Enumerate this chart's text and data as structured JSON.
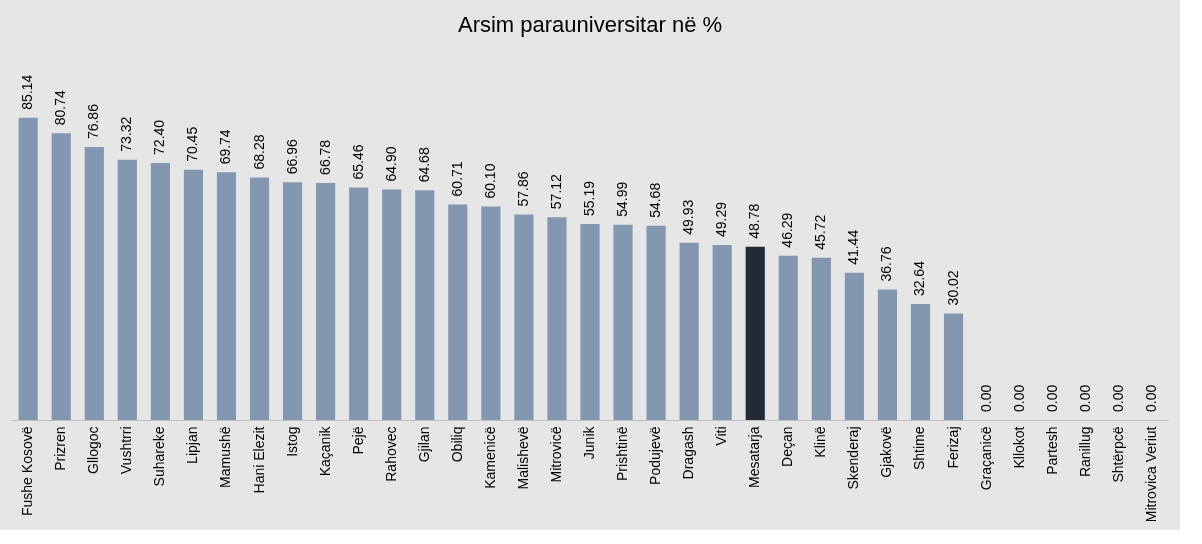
{
  "chart_data": {
    "type": "bar",
    "title": "Arsim parauniversitar në %",
    "categories": [
      "Fushe Kosovë",
      "Prizren",
      "Gllogoc",
      "Vushtrri",
      "Suhareke",
      "Lipjan",
      "Mamushë",
      "Hani Elezit",
      "Istog",
      "Kaçanik",
      "Pejë",
      "Rahovec",
      "Gjilan",
      "Obiliq",
      "Kamenicë",
      "Malishevë",
      "Mitrovicë",
      "Junik",
      "Prishtinë",
      "Podujevë",
      "Dragash",
      "Viti",
      "Mesatarja",
      "Deçan",
      "Klinë",
      "Skenderaj",
      "Gjakovë",
      "Shtime",
      "Ferizaj",
      "Graçanicë",
      "Kllokot",
      "Partesh",
      "Ranillug",
      "Shtërpcë",
      "Mitrovica Veriut"
    ],
    "values": [
      85.14,
      80.74,
      76.86,
      73.32,
      72.4,
      70.45,
      69.74,
      68.28,
      66.96,
      66.78,
      65.46,
      64.9,
      64.68,
      60.71,
      60.1,
      57.86,
      57.12,
      55.19,
      54.99,
      54.68,
      49.93,
      49.29,
      48.78,
      46.29,
      45.72,
      41.44,
      36.76,
      32.64,
      30.02,
      0.0,
      0.0,
      0.0,
      0.0,
      0.0,
      0.0
    ],
    "value_labels": [
      "85.14",
      "80.74",
      "76.86",
      "73.32",
      "72.40",
      "70.45",
      "69.74",
      "68.28",
      "66.96",
      "66.78",
      "65.46",
      "64.90",
      "64.68",
      "60.71",
      "60.10",
      "57.86",
      "57.12",
      "55.19",
      "54.99",
      "54.68",
      "49.93",
      "49.29",
      "48.78",
      "46.29",
      "45.72",
      "41.44",
      "36.76",
      "32.64",
      "30.02",
      "0.00",
      "0.00",
      "0.00",
      "0.00",
      "0.00",
      "0.00"
    ],
    "colors": [
      "#8497b0",
      "#8497b0",
      "#8497b0",
      "#8497b0",
      "#8497b0",
      "#8497b0",
      "#8497b0",
      "#8497b0",
      "#8497b0",
      "#8497b0",
      "#8497b0",
      "#8497b0",
      "#8497b0",
      "#8497b0",
      "#8497b0",
      "#8497b0",
      "#8497b0",
      "#8497b0",
      "#8497b0",
      "#8497b0",
      "#8497b0",
      "#8497b0",
      "#222a35",
      "#8497b0",
      "#8497b0",
      "#8497b0",
      "#8497b0",
      "#8497b0",
      "#8497b0",
      "#8497b0",
      "#8497b0",
      "#8497b0",
      "#8497b0",
      "#8497b0",
      "#8497b0"
    ],
    "grid": false
  }
}
